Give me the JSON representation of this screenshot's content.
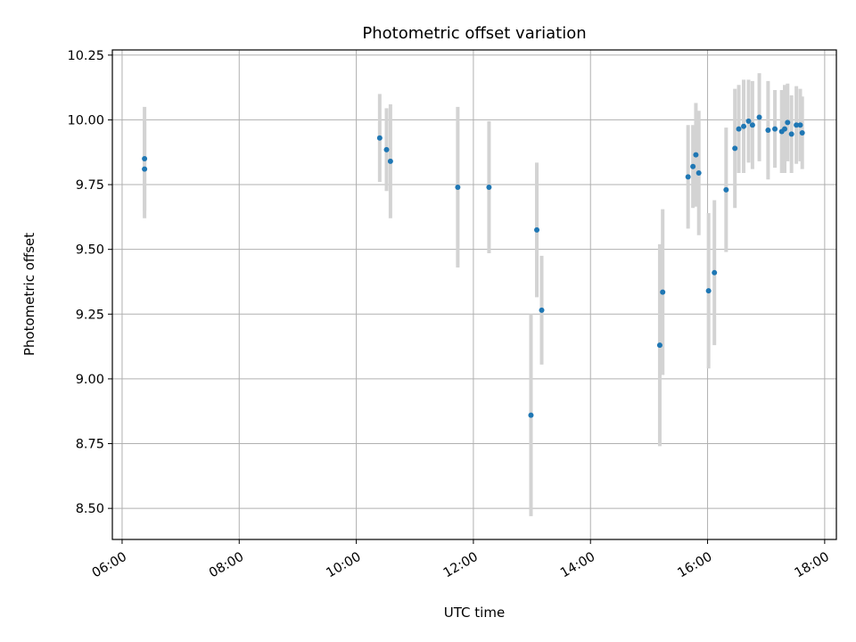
{
  "chart_data": {
    "type": "scatter",
    "title": "Photometric offset variation",
    "xlabel": "UTC time",
    "ylabel": "Photometric offset",
    "x_tick_labels": [
      "06:00",
      "08:00",
      "10:00",
      "12:00",
      "14:00",
      "16:00",
      "18:00"
    ],
    "y_tick_labels": [
      "8.50",
      "8.75",
      "9.00",
      "9.25",
      "9.50",
      "9.75",
      "10.00",
      "10.25"
    ],
    "xlim": [
      "05:50",
      "18:12"
    ],
    "ylim": [
      8.38,
      10.27
    ],
    "grid": true,
    "marker_color": "#1f77b4",
    "errorbar_color": "#d3d3d3",
    "points": [
      {
        "x": "06:23",
        "y": 9.85,
        "err": 0.2
      },
      {
        "x": "06:23",
        "y": 9.81,
        "err": 0.19
      },
      {
        "x": "10:24",
        "y": 9.93,
        "err": 0.17
      },
      {
        "x": "10:31",
        "y": 9.885,
        "err": 0.16
      },
      {
        "x": "10:35",
        "y": 9.84,
        "err": 0.22
      },
      {
        "x": "11:44",
        "y": 9.74,
        "err": 0.31
      },
      {
        "x": "12:16",
        "y": 9.74,
        "err": 0.255
      },
      {
        "x": "12:59",
        "y": 8.86,
        "err": 0.39
      },
      {
        "x": "13:05",
        "y": 9.575,
        "err": 0.26
      },
      {
        "x": "13:10",
        "y": 9.265,
        "err": 0.21
      },
      {
        "x": "15:11",
        "y": 9.13,
        "err": 0.39
      },
      {
        "x": "15:14",
        "y": 9.335,
        "err": 0.32
      },
      {
        "x": "15:40",
        "y": 9.78,
        "err": 0.2
      },
      {
        "x": "15:45",
        "y": 9.82,
        "err": 0.16
      },
      {
        "x": "15:48",
        "y": 9.865,
        "err": 0.2
      },
      {
        "x": "15:51",
        "y": 9.795,
        "err": 0.24
      },
      {
        "x": "16:01",
        "y": 9.34,
        "err": 0.3
      },
      {
        "x": "16:07",
        "y": 9.41,
        "err": 0.28
      },
      {
        "x": "16:19",
        "y": 9.73,
        "err": 0.24
      },
      {
        "x": "16:28",
        "y": 9.89,
        "err": 0.23
      },
      {
        "x": "16:32",
        "y": 9.965,
        "err": 0.17
      },
      {
        "x": "16:37",
        "y": 9.975,
        "err": 0.18
      },
      {
        "x": "16:42",
        "y": 9.995,
        "err": 0.16
      },
      {
        "x": "16:46",
        "y": 9.98,
        "err": 0.17
      },
      {
        "x": "16:53",
        "y": 10.01,
        "err": 0.17
      },
      {
        "x": "17:02",
        "y": 9.96,
        "err": 0.19
      },
      {
        "x": "17:09",
        "y": 9.965,
        "err": 0.15
      },
      {
        "x": "17:16",
        "y": 9.955,
        "err": 0.16
      },
      {
        "x": "17:19",
        "y": 9.965,
        "err": 0.17
      },
      {
        "x": "17:22",
        "y": 9.99,
        "err": 0.15
      },
      {
        "x": "17:26",
        "y": 9.945,
        "err": 0.15
      },
      {
        "x": "17:31",
        "y": 9.98,
        "err": 0.15
      },
      {
        "x": "17:35",
        "y": 9.98,
        "err": 0.14
      },
      {
        "x": "17:37",
        "y": 9.95,
        "err": 0.14
      }
    ]
  }
}
